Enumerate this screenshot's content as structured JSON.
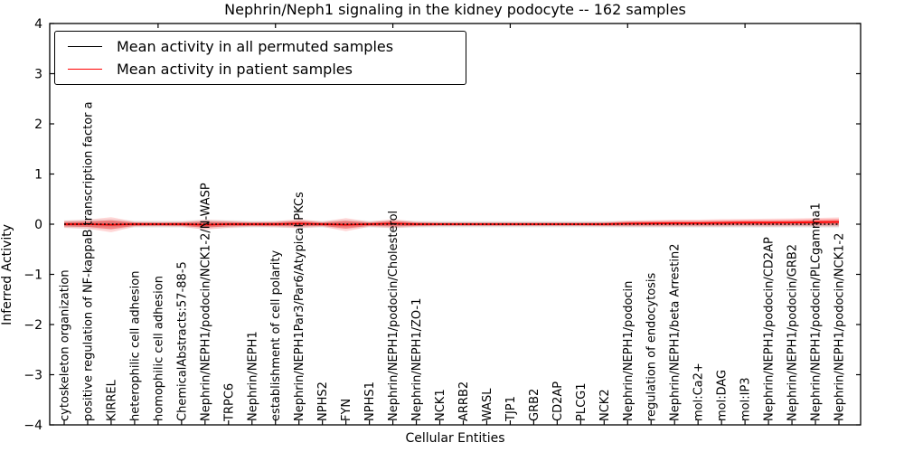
{
  "figure_title": "Nephrin/Neph1 signaling in the kidney podocyte -- 162 samples",
  "axes": {
    "xlabel": "Cellular Entities",
    "ylabel": "Inferred Activity"
  },
  "legend": {
    "items": [
      {
        "label": "Mean activity in all permuted samples",
        "color": "#000000"
      },
      {
        "label": "Mean activity in patient samples",
        "color": "#ff0000"
      }
    ]
  },
  "chart_data": {
    "type": "line",
    "title": "Nephrin/Neph1 signaling in the kidney podocyte -- 162 samples",
    "xlabel": "Cellular Entities",
    "ylabel": "Inferred Activity",
    "ylim": [
      -4,
      4
    ],
    "yticks": [
      -4,
      -3,
      -2,
      -1,
      0,
      1,
      2,
      3,
      4
    ],
    "top_xtick_values": [
      5,
      10,
      15,
      20,
      25,
      30
    ],
    "grid": false,
    "legend_position": "upper left",
    "categories": [
      "cytoskeleton organization",
      "positive regulation of NF-kappaB transcription factor a",
      "KIRREL",
      "heterophilic cell adhesion",
      "homophilic cell adhesion",
      "ChemicalAbstracts:57-88-5",
      "Nephrin/NEPH1/podocin/NCK1-2/N-WASP",
      "TRPC6",
      "Nephrin/NEPH1",
      "establishment of cell polarity",
      "Nephrin/NEPH1Par3/Par6/Atypical PKCs",
      "NPHS2",
      "FYN",
      "NPHS1",
      "Nephrin/NEPH1/podocin/Cholesterol",
      "Nephrin/NEPH1/ZO-1",
      "NCK1",
      "ARRB2",
      "WASL",
      "TJP1",
      "GRB2",
      "CD2AP",
      "PLCG1",
      "NCK2",
      "Nephrin/NEPH1/podocin",
      "regulation of endocytosis",
      "Nephrin/NEPH1/beta Arrestin2",
      "mol:Ca2+",
      "mol:DAG",
      "mol:IP3",
      "Nephrin/NEPH1/podocin/CD2AP",
      "Nephrin/NEPH1/podocin/GRB2",
      "Nephrin/NEPH1/podocin/PLCgamma1",
      "Nephrin/NEPH1/podocin/NCK1-2"
    ],
    "series": [
      {
        "name": "Mean activity in all permuted samples",
        "color": "#000000",
        "line_style": "dotted",
        "values": [
          0,
          0,
          0,
          0,
          0,
          0,
          0,
          0,
          0,
          0,
          0,
          0,
          0,
          0,
          0,
          0,
          0,
          0,
          0,
          0,
          0,
          0,
          0,
          0,
          0,
          0,
          0,
          0,
          0,
          0,
          0,
          0,
          0,
          0
        ],
        "band_std": [
          0.08,
          0.09,
          0.1,
          0.07,
          0.07,
          0.07,
          0.09,
          0.08,
          0.07,
          0.07,
          0.08,
          0.07,
          0.09,
          0.07,
          0.08,
          0.07,
          0.065,
          0.065,
          0.065,
          0.065,
          0.065,
          0.065,
          0.065,
          0.065,
          0.07,
          0.07,
          0.07,
          0.07,
          0.07,
          0.07,
          0.07,
          0.07,
          0.07,
          0.075
        ],
        "band_color": "#808080"
      },
      {
        "name": "Mean activity in patient samples",
        "color": "#ff0000",
        "line_style": "solid",
        "values": [
          0,
          0,
          -0.01,
          0,
          0,
          0,
          -0.01,
          0,
          0,
          0,
          0.01,
          0,
          -0.01,
          0,
          0.01,
          0,
          0,
          0,
          0,
          0,
          0,
          0,
          0,
          0,
          0.01,
          0.015,
          0.02,
          0.02,
          0.025,
          0.03,
          0.03,
          0.035,
          0.04,
          0.045
        ],
        "band_std": [
          0.07,
          0.09,
          0.15,
          0.05,
          0.045,
          0.05,
          0.1,
          0.07,
          0.05,
          0.06,
          0.09,
          0.05,
          0.13,
          0.05,
          0.09,
          0.05,
          0.04,
          0.04,
          0.04,
          0.04,
          0.04,
          0.04,
          0.04,
          0.045,
          0.06,
          0.065,
          0.07,
          0.07,
          0.075,
          0.075,
          0.08,
          0.08,
          0.085,
          0.09
        ],
        "band_color": "#ff0000"
      }
    ]
  },
  "style": {
    "spine_color": "#000000",
    "background": "#ffffff",
    "tick_label_color": "#000000"
  }
}
